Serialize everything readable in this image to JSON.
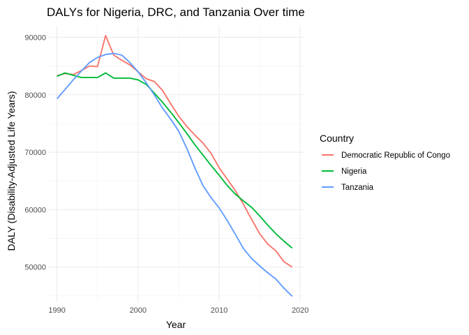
{
  "chart_data": {
    "type": "line",
    "title": "DALYs for Nigeria, DRC, and Tanzania Over time",
    "xlabel": "Year",
    "ylabel": "DALY (Disability-Adjusted Life Years)",
    "xlim": [
      1989,
      2020.5
    ],
    "ylim": [
      44000,
      92000
    ],
    "xticks": [
      1990,
      2000,
      2010,
      2020
    ],
    "xtick_labels": [
      "1990",
      "2000",
      "2010",
      "2020"
    ],
    "xminor": [
      1995,
      2005,
      2015
    ],
    "yticks": [
      50000,
      60000,
      70000,
      80000,
      90000
    ],
    "ytick_labels": [
      "50000",
      "60000",
      "70000",
      "80000",
      "90000"
    ],
    "yminor": [
      45000,
      55000,
      65000,
      75000,
      85000
    ],
    "grid": true,
    "legend": {
      "title": "Country",
      "position": "right"
    },
    "x": [
      1990,
      1991,
      1992,
      1993,
      1994,
      1995,
      1996,
      1997,
      1998,
      1999,
      2000,
      2001,
      2002,
      2003,
      2004,
      2005,
      2006,
      2007,
      2008,
      2009,
      2010,
      2011,
      2012,
      2013,
      2014,
      2015,
      2016,
      2017,
      2018,
      2019
    ],
    "series": [
      {
        "name": "Democratic Republic of Congo",
        "color": "#F8766D",
        "values": [
          83300,
          83700,
          83500,
          84200,
          85000,
          84900,
          90300,
          86900,
          86000,
          85200,
          84000,
          82800,
          82300,
          80800,
          78500,
          76300,
          74500,
          73000,
          71600,
          69800,
          67300,
          65300,
          63300,
          60900,
          58300,
          55800,
          54000,
          52800,
          50900,
          50000
        ]
      },
      {
        "name": "Nigeria",
        "color": "#00BA38",
        "values": [
          83200,
          83800,
          83400,
          83000,
          83000,
          83000,
          83800,
          82900,
          82900,
          82900,
          82600,
          81800,
          80300,
          78700,
          77000,
          75200,
          73300,
          71300,
          69500,
          67700,
          66000,
          64200,
          62700,
          61500,
          60400,
          58900,
          57300,
          55800,
          54500,
          53300
        ]
      },
      {
        "name": "Tanzania",
        "color": "#619CFF",
        "values": [
          79300,
          80900,
          82600,
          84100,
          85600,
          86500,
          87000,
          87200,
          86900,
          85600,
          84000,
          82100,
          80000,
          77700,
          75800,
          73700,
          70700,
          67300,
          64200,
          62100,
          60300,
          58100,
          55700,
          53200,
          51500,
          50200,
          49000,
          47900,
          46300,
          44900
        ]
      }
    ]
  }
}
